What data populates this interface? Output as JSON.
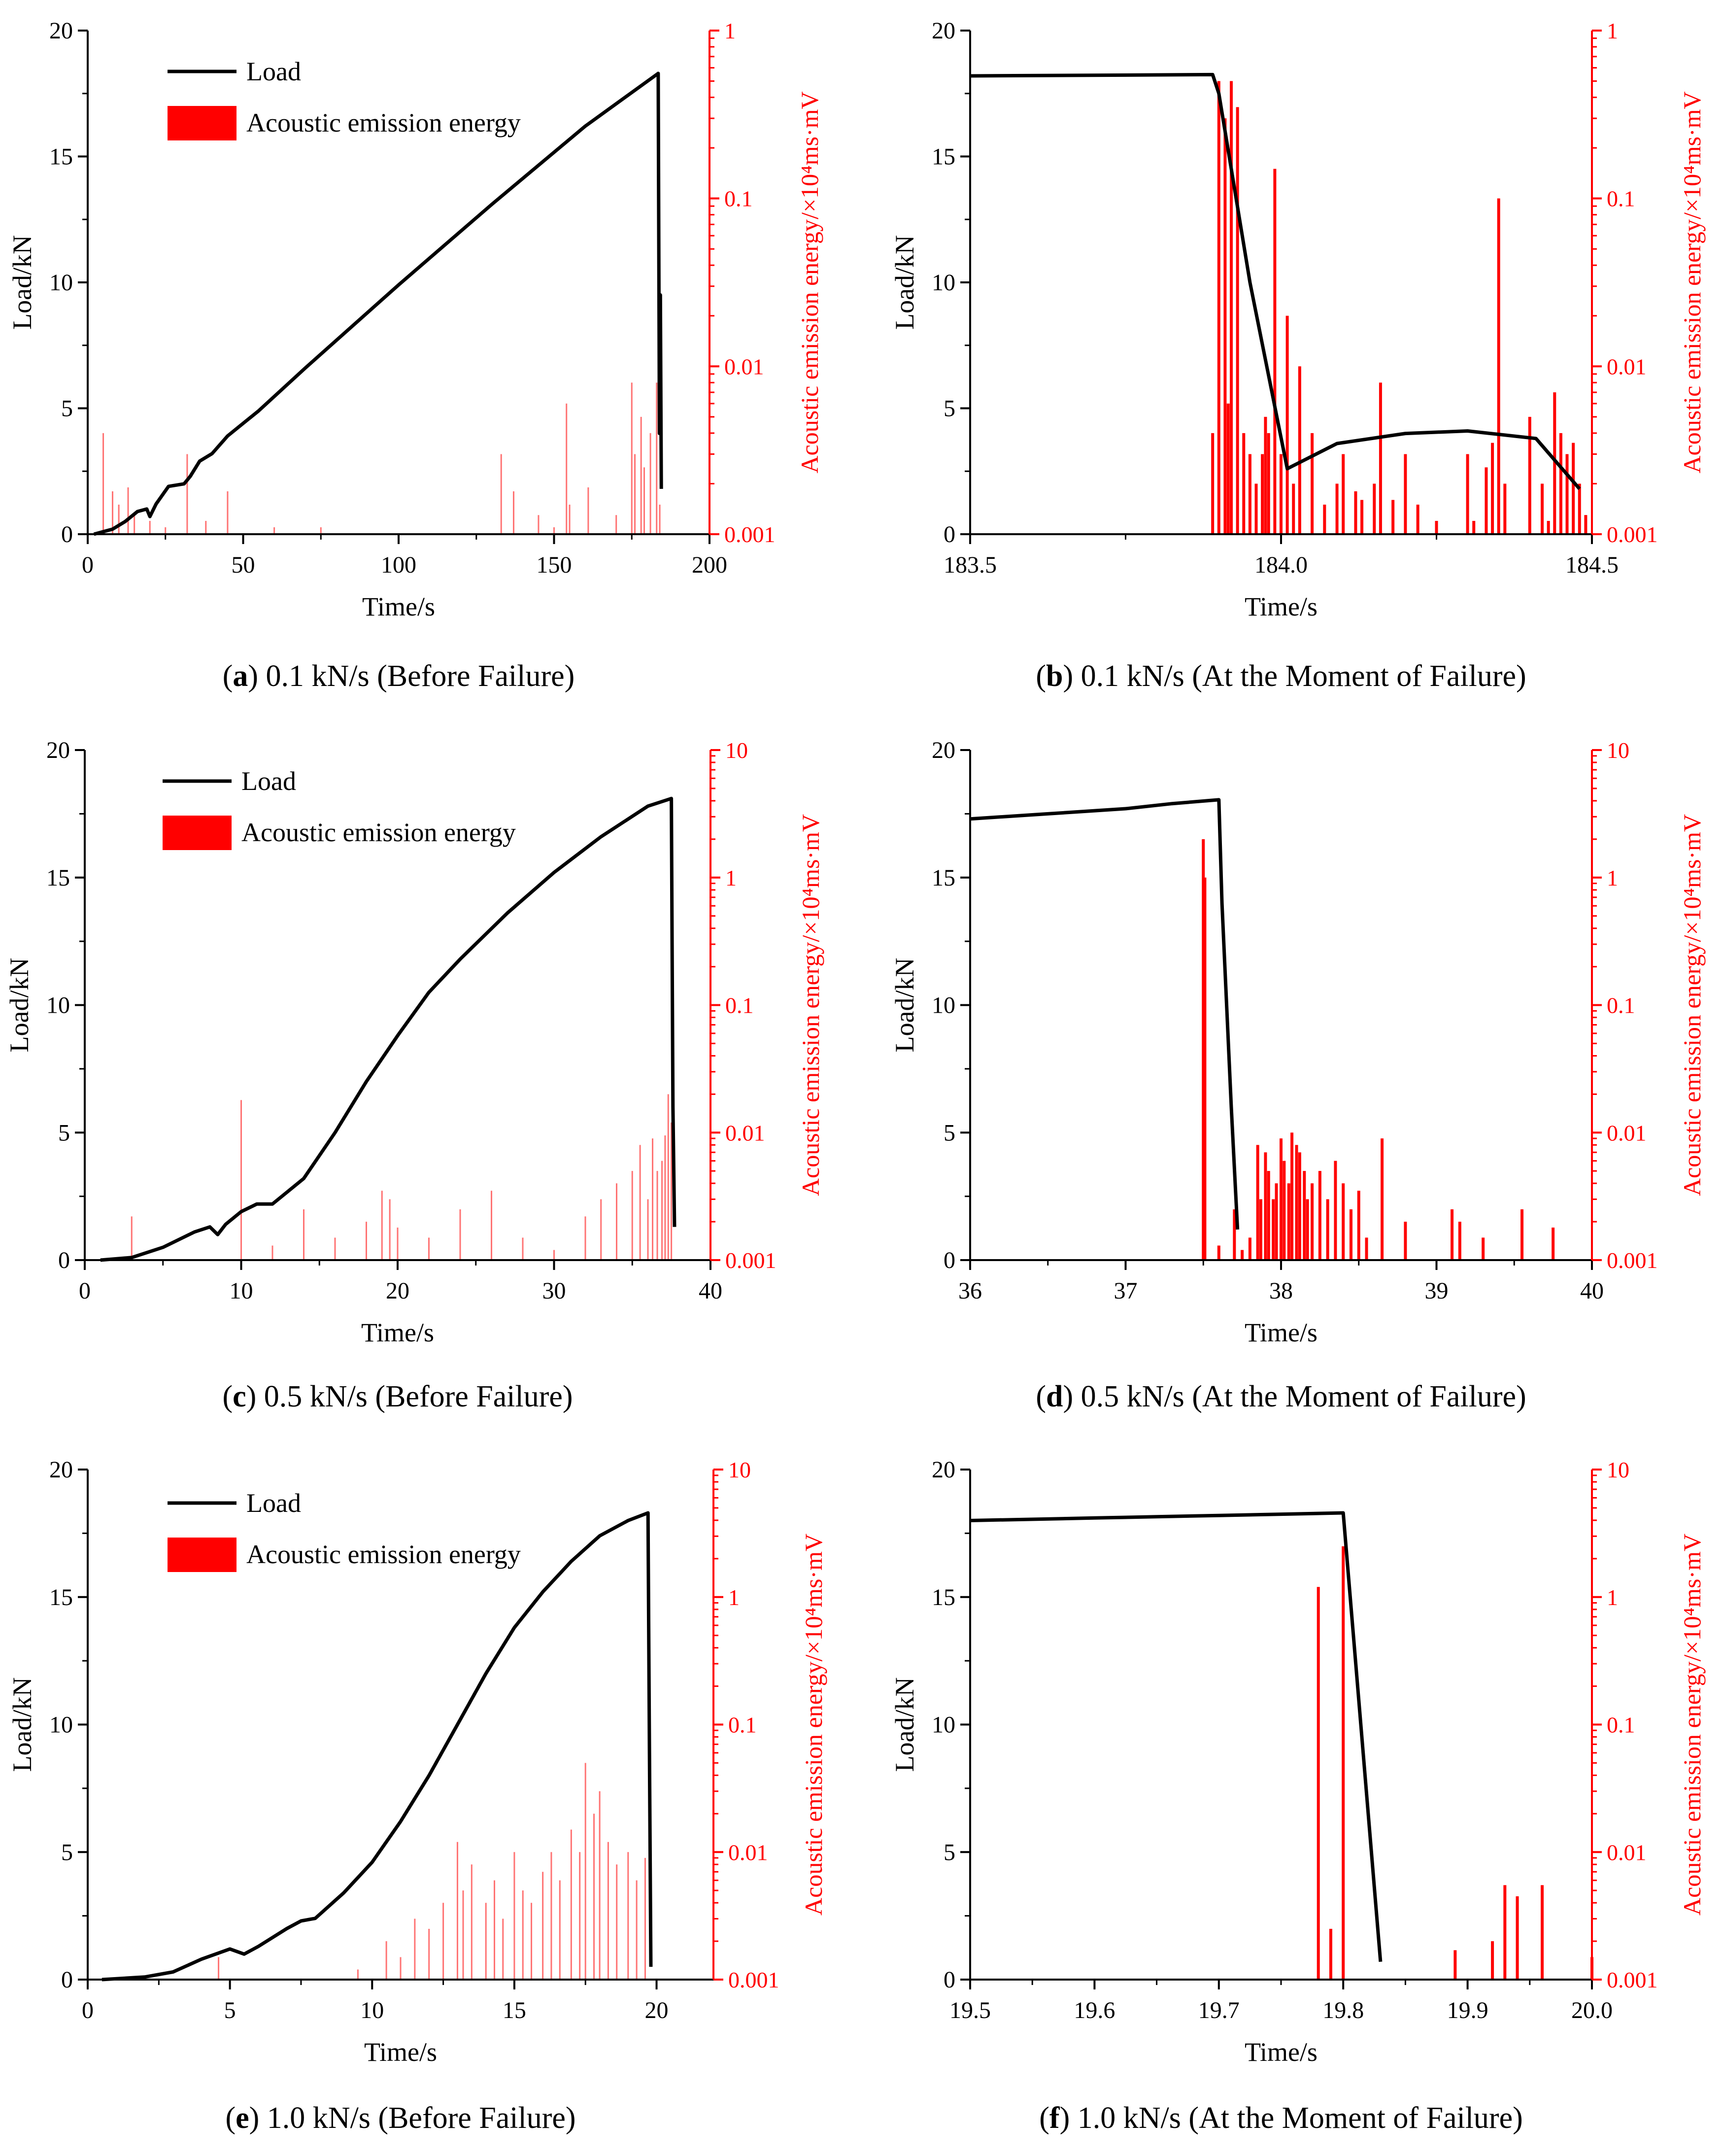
{
  "colors": {
    "load": "#000000",
    "ae": "#ff0000",
    "axis": "#000000",
    "background": "#ffffff"
  },
  "chart_data": [
    {
      "type": "line+bar",
      "panel_letter": "a",
      "caption": " 0.1 kN/s (Before Failure)",
      "xlabel": "Time/s",
      "ylabel": "Load/kN",
      "y2label": "Acoustic emission energy/×10⁴ms·mV",
      "xlim": [
        0,
        200
      ],
      "xticks": [
        0,
        50,
        100,
        150,
        200
      ],
      "xtick_labels": [
        "0",
        "50",
        "100",
        "150",
        "200"
      ],
      "ylim": [
        0,
        20
      ],
      "yticks": [
        0,
        5,
        10,
        15,
        20
      ],
      "ytick_labels": [
        "0",
        "5",
        "10",
        "15",
        "20"
      ],
      "y2_scale": "log",
      "y2lim": [
        0.001,
        1
      ],
      "y2ticks": [
        0.001,
        0.01,
        0.1,
        1
      ],
      "y2tick_labels": [
        "0.001",
        "0.01",
        "0.1",
        "1"
      ],
      "legend": {
        "placement": "top-left",
        "entries": [
          "Load",
          "Acoustic emission energy"
        ]
      },
      "series": [
        {
          "name": "Load",
          "kind": "line",
          "x": [
            2,
            8,
            12,
            16,
            19,
            20,
            22,
            26,
            31,
            33,
            36,
            40,
            45,
            55,
            70,
            100,
            130,
            160,
            183.5,
            183.9,
            184.2,
            184.5
          ],
          "y": [
            0,
            0.2,
            0.5,
            0.9,
            1.0,
            0.7,
            1.2,
            1.9,
            2.0,
            2.3,
            2.9,
            3.2,
            3.9,
            4.9,
            6.6,
            9.9,
            13.1,
            16.2,
            18.3,
            4.0,
            9.5,
            1.8
          ]
        },
        {
          "name": "Acoustic emission energy",
          "kind": "bar",
          "faint": true,
          "x": [
            5,
            8,
            10,
            13,
            15,
            20,
            25,
            32,
            38,
            45,
            60,
            75,
            133,
            137,
            145,
            150,
            154,
            155,
            161,
            170,
            175,
            176,
            178,
            179,
            181,
            183,
            184
          ],
          "values": [
            0.004,
            0.0018,
            0.0015,
            0.0019,
            0.0013,
            0.0012,
            0.0011,
            0.003,
            0.0012,
            0.0018,
            0.0011,
            0.0011,
            0.003,
            0.0018,
            0.0013,
            0.0011,
            0.006,
            0.0015,
            0.0019,
            0.0013,
            0.008,
            0.003,
            0.005,
            0.0025,
            0.004,
            0.008,
            0.0015
          ]
        }
      ]
    },
    {
      "type": "line+bar",
      "panel_letter": "b",
      "caption": " 0.1 kN/s (At the Moment of Failure)",
      "xlabel": "Time/s",
      "ylabel": "Load/kN",
      "y2label": "Acoustic emission energy/×10⁴ms·mV",
      "xlim": [
        183.5,
        184.5
      ],
      "xticks": [
        183.5,
        184.0,
        184.5
      ],
      "xtick_labels": [
        "183.5",
        "184.0",
        "184.5"
      ],
      "ylim": [
        0,
        20
      ],
      "yticks": [
        0,
        5,
        10,
        15,
        20
      ],
      "ytick_labels": [
        "0",
        "5",
        "10",
        "15",
        "20"
      ],
      "y2_scale": "log",
      "y2lim": [
        0.001,
        1
      ],
      "y2ticks": [
        0.001,
        0.01,
        0.1,
        1
      ],
      "y2tick_labels": [
        "0.001",
        "0.01",
        "0.1",
        "1"
      ],
      "legend": null,
      "series": [
        {
          "name": "Load",
          "kind": "line",
          "x": [
            183.5,
            183.89,
            183.9,
            183.95,
            184.01,
            184.09,
            184.2,
            184.3,
            184.41,
            184.48
          ],
          "y": [
            18.2,
            18.25,
            17.5,
            10,
            2.6,
            3.6,
            4.0,
            4.1,
            3.8,
            1.8
          ]
        },
        {
          "name": "Acoustic emission energy",
          "kind": "bar",
          "faint": false,
          "x": [
            183.89,
            183.9,
            183.91,
            183.915,
            183.92,
            183.93,
            183.94,
            183.95,
            183.96,
            183.97,
            183.975,
            183.98,
            183.99,
            184.0,
            184.01,
            184.02,
            184.03,
            184.05,
            184.07,
            184.09,
            184.1,
            184.12,
            184.13,
            184.15,
            184.16,
            184.18,
            184.2,
            184.22,
            184.25,
            184.3,
            184.31,
            184.33,
            184.34,
            184.35,
            184.36,
            184.4,
            184.42,
            184.43,
            184.44,
            184.45,
            184.46,
            184.47,
            184.48,
            184.49
          ],
          "values": [
            0.004,
            0.5,
            0.3,
            0.006,
            0.5,
            0.35,
            0.004,
            0.003,
            0.002,
            0.003,
            0.005,
            0.004,
            0.15,
            0.003,
            0.02,
            0.002,
            0.01,
            0.004,
            0.0015,
            0.002,
            0.003,
            0.0018,
            0.0016,
            0.002,
            0.008,
            0.0016,
            0.003,
            0.0015,
            0.0012,
            0.003,
            0.0012,
            0.0025,
            0.0035,
            0.1,
            0.002,
            0.005,
            0.002,
            0.0012,
            0.007,
            0.004,
            0.003,
            0.0035,
            0.002,
            0.0013
          ]
        }
      ]
    },
    {
      "type": "line+bar",
      "panel_letter": "c",
      "caption": " 0.5 kN/s (Before Failure)",
      "xlabel": "Time/s",
      "ylabel": "Load/kN",
      "y2label": "Acoustic emission energy/×10⁴ms·mV",
      "xlim": [
        0,
        40
      ],
      "xticks": [
        0,
        10,
        20,
        30,
        40
      ],
      "xtick_labels": [
        "0",
        "10",
        "20",
        "30",
        "40"
      ],
      "ylim": [
        0,
        20
      ],
      "yticks": [
        0,
        5,
        10,
        15,
        20
      ],
      "ytick_labels": [
        "0",
        "5",
        "10",
        "15",
        "20"
      ],
      "y2_scale": "log",
      "y2lim": [
        0.001,
        10
      ],
      "y2ticks": [
        0.001,
        0.01,
        0.1,
        1,
        10
      ],
      "y2tick_labels": [
        "0.001",
        "0.01",
        "0.1",
        "1",
        "10"
      ],
      "legend": {
        "placement": "top-left",
        "entries": [
          "Load",
          "Acoustic emission energy"
        ]
      },
      "series": [
        {
          "name": "Load",
          "kind": "line",
          "x": [
            1,
            3,
            5,
            7,
            8,
            8.5,
            9,
            10,
            11,
            12,
            13,
            14,
            16,
            18,
            20,
            22,
            24,
            27,
            30,
            33,
            36,
            37.5,
            37.55,
            37.6,
            37.7
          ],
          "y": [
            0,
            0.1,
            0.5,
            1.1,
            1.3,
            1.0,
            1.4,
            1.9,
            2.2,
            2.2,
            2.7,
            3.2,
            5.0,
            7.0,
            8.8,
            10.5,
            11.8,
            13.6,
            15.2,
            16.6,
            17.8,
            18.1,
            12.0,
            6.0,
            1.3
          ]
        },
        {
          "name": "Acoustic emission energy",
          "kind": "bar",
          "faint": true,
          "x": [
            3,
            10,
            12,
            14,
            16,
            18,
            19,
            19.5,
            20,
            22,
            24,
            26,
            28,
            30,
            32,
            33,
            34,
            35,
            35.5,
            36,
            36.3,
            36.6,
            36.9,
            37.1,
            37.3,
            37.5
          ],
          "values": [
            0.0022,
            0.018,
            0.0013,
            0.0025,
            0.0015,
            0.002,
            0.0035,
            0.003,
            0.0018,
            0.0015,
            0.0025,
            0.0035,
            0.0015,
            0.0012,
            0.0022,
            0.003,
            0.004,
            0.005,
            0.008,
            0.003,
            0.009,
            0.005,
            0.006,
            0.0095,
            0.02,
            0.012
          ]
        }
      ]
    },
    {
      "type": "line+bar",
      "panel_letter": "d",
      "caption": " 0.5 kN/s (At the Moment of Failure)",
      "xlabel": "Time/s",
      "ylabel": "Load/kN",
      "y2label": "Acoustic emission energy/×10⁴ms·mV",
      "xlim": [
        36,
        40
      ],
      "xticks": [
        36,
        37,
        38,
        39,
        40
      ],
      "xtick_labels": [
        "36",
        "37",
        "38",
        "39",
        "40"
      ],
      "ylim": [
        0,
        20
      ],
      "yticks": [
        0,
        5,
        10,
        15,
        20
      ],
      "ytick_labels": [
        "0",
        "5",
        "10",
        "15",
        "20"
      ],
      "y2_scale": "log",
      "y2lim": [
        0.001,
        10
      ],
      "y2ticks": [
        0.001,
        0.01,
        0.1,
        1,
        10
      ],
      "y2tick_labels": [
        "0.001",
        "0.01",
        "0.1",
        "1",
        "10"
      ],
      "legend": null,
      "series": [
        {
          "name": "Load",
          "kind": "line",
          "x": [
            36,
            36.5,
            37,
            37.3,
            37.6,
            37.62,
            37.68,
            37.72
          ],
          "y": [
            17.3,
            17.5,
            17.7,
            17.9,
            18.05,
            14,
            6,
            1.2
          ]
        },
        {
          "name": "Acoustic emission energy",
          "kind": "bar",
          "faint": false,
          "x": [
            37.5,
            37.51,
            37.6,
            37.7,
            37.75,
            37.8,
            37.85,
            37.87,
            37.9,
            37.92,
            37.95,
            37.97,
            38.0,
            38.02,
            38.05,
            38.07,
            38.1,
            38.12,
            38.15,
            38.17,
            38.2,
            38.25,
            38.3,
            38.35,
            38.4,
            38.45,
            38.5,
            38.55,
            38.65,
            38.8,
            39.1,
            39.15,
            39.3,
            39.55,
            39.75
          ],
          "values": [
            2.0,
            1.0,
            0.0013,
            0.0025,
            0.0012,
            0.0015,
            0.008,
            0.003,
            0.007,
            0.005,
            0.003,
            0.004,
            0.009,
            0.006,
            0.004,
            0.01,
            0.008,
            0.007,
            0.005,
            0.003,
            0.004,
            0.005,
            0.003,
            0.006,
            0.004,
            0.0025,
            0.0035,
            0.0015,
            0.009,
            0.002,
            0.0025,
            0.002,
            0.0015,
            0.0025,
            0.0018
          ]
        }
      ]
    },
    {
      "type": "line+bar",
      "panel_letter": "e",
      "caption": " 1.0 kN/s (Before Failure)",
      "xlabel": "Time/s",
      "ylabel": "Load/kN",
      "y2label": "Acoustic emission energy/×10⁴ms·mV",
      "xlim": [
        0,
        22
      ],
      "xticks": [
        0,
        5,
        10,
        15,
        20
      ],
      "xtick_labels": [
        "0",
        "5",
        "10",
        "15",
        "20"
      ],
      "ylim": [
        0,
        20
      ],
      "yticks": [
        0,
        5,
        10,
        15,
        20
      ],
      "ytick_labels": [
        "0",
        "5",
        "10",
        "15",
        "20"
      ],
      "y2_scale": "log",
      "y2lim": [
        0.001,
        10
      ],
      "y2ticks": [
        0.001,
        0.01,
        0.1,
        1,
        10
      ],
      "y2tick_labels": [
        "0.001",
        "0.01",
        "0.1",
        "1",
        "10"
      ],
      "legend": {
        "placement": "top-left",
        "entries": [
          "Load",
          "Acoustic emission energy"
        ]
      },
      "series": [
        {
          "name": "Load",
          "kind": "line",
          "x": [
            0.5,
            2,
            3,
            4,
            5,
            5.5,
            6,
            7,
            7.5,
            8,
            9,
            10,
            11,
            12,
            13,
            14,
            15,
            16,
            17,
            18,
            19,
            19.7,
            19.75,
            19.8
          ],
          "y": [
            0,
            0.1,
            0.3,
            0.8,
            1.2,
            1.0,
            1.3,
            2.0,
            2.3,
            2.4,
            3.4,
            4.6,
            6.2,
            8.0,
            10.0,
            12.0,
            13.8,
            15.2,
            16.4,
            17.4,
            18.0,
            18.3,
            9.0,
            0.5
          ]
        },
        {
          "name": "Acoustic emission energy",
          "kind": "bar",
          "faint": true,
          "x": [
            4.6,
            9.5,
            10.5,
            11,
            11.5,
            12,
            12.5,
            13,
            13.2,
            13.5,
            14,
            14.3,
            14.6,
            15,
            15.3,
            15.6,
            16,
            16.3,
            16.6,
            17,
            17.3,
            17.5,
            17.8,
            18,
            18.3,
            18.6,
            19,
            19.3,
            19.6
          ],
          "values": [
            0.0015,
            0.0012,
            0.002,
            0.0015,
            0.003,
            0.0025,
            0.004,
            0.012,
            0.005,
            0.008,
            0.004,
            0.006,
            0.003,
            0.01,
            0.005,
            0.004,
            0.007,
            0.01,
            0.006,
            0.015,
            0.01,
            0.05,
            0.02,
            0.03,
            0.012,
            0.008,
            0.01,
            0.006,
            0.009
          ]
        }
      ]
    },
    {
      "type": "line+bar",
      "panel_letter": "f",
      "caption": " 1.0 kN/s (At the Moment of Failure)",
      "xlabel": "Time/s",
      "ylabel": "Load/kN",
      "y2label": "Acoustic emission energy/×10⁴ms·mV",
      "xlim": [
        19.5,
        20.0
      ],
      "xticks": [
        19.5,
        19.6,
        19.7,
        19.8,
        19.9,
        20.0
      ],
      "xtick_labels": [
        "19.5",
        "19.6",
        "19.7",
        "19.8",
        "19.9",
        "20.0"
      ],
      "ylim": [
        0,
        20
      ],
      "yticks": [
        0,
        5,
        10,
        15,
        20
      ],
      "ytick_labels": [
        "0",
        "5",
        "10",
        "15",
        "20"
      ],
      "y2_scale": "log",
      "y2lim": [
        0.001,
        10
      ],
      "y2ticks": [
        0.001,
        0.01,
        0.1,
        1,
        10
      ],
      "y2tick_labels": [
        "0.001",
        "0.01",
        "0.1",
        "1",
        "10"
      ],
      "legend": null,
      "series": [
        {
          "name": "Load",
          "kind": "line",
          "x": [
            19.5,
            19.6,
            19.7,
            19.8,
            19.83
          ],
          "y": [
            18.0,
            18.1,
            18.2,
            18.3,
            0.7
          ]
        },
        {
          "name": "Acoustic emission energy",
          "kind": "bar",
          "faint": false,
          "x": [
            19.78,
            19.79,
            19.8,
            19.89,
            19.92,
            19.93,
            19.94,
            19.96,
            20.0
          ],
          "values": [
            1.2,
            0.0025,
            2.5,
            0.0017,
            0.002,
            0.0055,
            0.0045,
            0.0055,
            0.0015
          ]
        }
      ]
    }
  ]
}
